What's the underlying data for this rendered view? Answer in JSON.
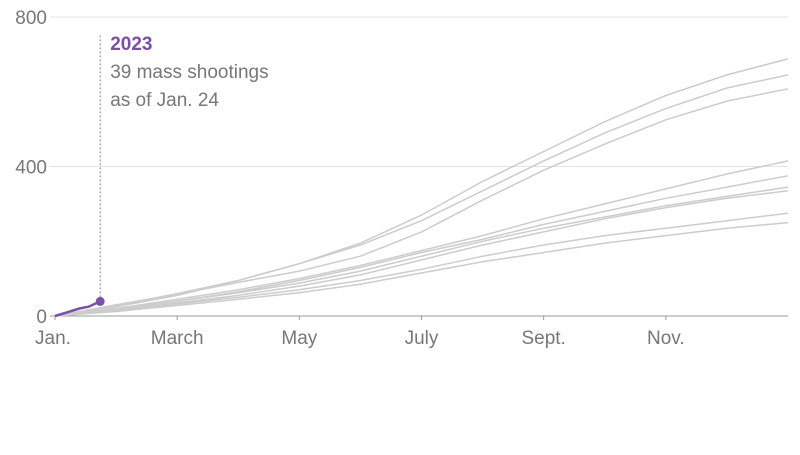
{
  "chart_data": {
    "type": "line",
    "xlim": [
      0,
      12
    ],
    "xticks": [
      {
        "value": 0,
        "label": "Jan."
      },
      {
        "value": 2,
        "label": "March"
      },
      {
        "value": 4,
        "label": "May"
      },
      {
        "value": 6,
        "label": "July"
      },
      {
        "value": 8,
        "label": "Sept."
      },
      {
        "value": 10,
        "label": "Nov."
      }
    ],
    "ylim": [
      0,
      800
    ],
    "yticks": [
      0,
      400,
      800
    ],
    "grid": true,
    "series": [
      {
        "color": "#cccccc",
        "x": [
          0,
          1,
          2,
          3,
          4,
          5,
          6,
          7,
          8,
          9,
          10,
          11,
          12
        ],
        "values": [
          0,
          25,
          55,
          95,
          140,
          195,
          270,
          360,
          440,
          520,
          590,
          645,
          688
        ]
      },
      {
        "color": "#cccccc",
        "x": [
          0,
          1,
          2,
          3,
          4,
          5,
          6,
          7,
          8,
          9,
          10,
          11,
          12
        ],
        "values": [
          0,
          28,
          60,
          95,
          140,
          190,
          255,
          335,
          415,
          490,
          555,
          610,
          645
        ]
      },
      {
        "color": "#cccccc",
        "x": [
          0,
          1,
          2,
          3,
          4,
          5,
          6,
          7,
          8,
          9,
          10,
          11,
          12
        ],
        "values": [
          0,
          30,
          58,
          90,
          120,
          160,
          225,
          310,
          390,
          460,
          525,
          575,
          608
        ]
      },
      {
        "color": "#cccccc",
        "x": [
          0,
          1,
          2,
          3,
          4,
          5,
          6,
          7,
          8,
          9,
          10,
          11,
          12
        ],
        "values": [
          0,
          20,
          45,
          70,
          100,
          135,
          175,
          215,
          260,
          300,
          340,
          380,
          415
        ]
      },
      {
        "color": "#cccccc",
        "x": [
          0,
          1,
          2,
          3,
          4,
          5,
          6,
          7,
          8,
          9,
          10,
          11,
          12
        ],
        "values": [
          0,
          18,
          40,
          65,
          95,
          130,
          170,
          205,
          245,
          280,
          315,
          345,
          375
        ]
      },
      {
        "color": "#cccccc",
        "x": [
          0,
          1,
          2,
          3,
          4,
          5,
          6,
          7,
          8,
          9,
          10,
          11,
          12
        ],
        "values": [
          0,
          18,
          40,
          62,
          88,
          120,
          160,
          200,
          235,
          265,
          295,
          320,
          345
        ]
      },
      {
        "color": "#cccccc",
        "x": [
          0,
          1,
          2,
          3,
          4,
          5,
          6,
          7,
          8,
          9,
          10,
          11,
          12
        ],
        "values": [
          0,
          15,
          35,
          55,
          80,
          110,
          150,
          190,
          225,
          260,
          290,
          315,
          335
        ]
      },
      {
        "color": "#cccccc",
        "x": [
          0,
          1,
          2,
          3,
          4,
          5,
          6,
          7,
          8,
          9,
          10,
          11,
          12
        ],
        "values": [
          0,
          15,
          32,
          50,
          70,
          95,
          125,
          160,
          190,
          215,
          235,
          255,
          275
        ]
      },
      {
        "color": "#cccccc",
        "x": [
          0,
          1,
          2,
          3,
          4,
          5,
          6,
          7,
          8,
          9,
          10,
          11,
          12
        ],
        "values": [
          0,
          12,
          28,
          45,
          62,
          85,
          115,
          145,
          170,
          195,
          215,
          235,
          250
        ]
      },
      {
        "name": "2023",
        "color": "#7b4fa6",
        "x": [
          0,
          0.2,
          0.4,
          0.55,
          0.74
        ],
        "values": [
          0,
          10,
          20,
          25,
          39
        ]
      }
    ],
    "annotation": [
      "39 mass shootings",
      "as of Jan. 24"
    ]
  }
}
